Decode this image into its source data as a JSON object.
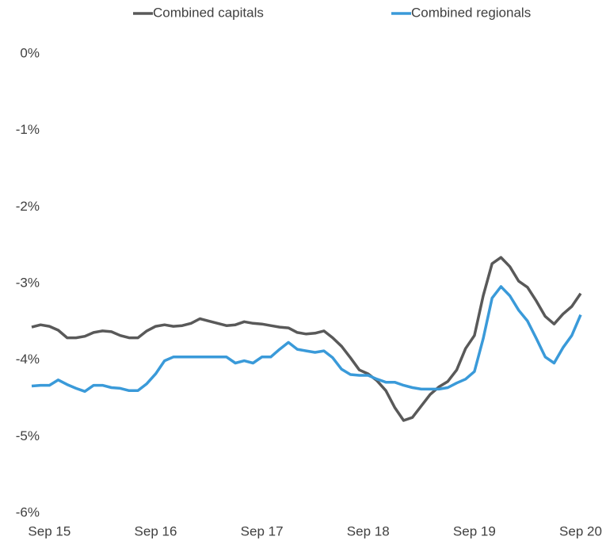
{
  "chart_data": {
    "type": "line",
    "categories": [
      null,
      null,
      "Sep 15",
      null,
      null,
      null,
      null,
      null,
      null,
      null,
      null,
      null,
      null,
      null,
      "Sep 16",
      null,
      null,
      null,
      null,
      null,
      null,
      null,
      null,
      null,
      null,
      null,
      "Sep 17",
      null,
      null,
      null,
      null,
      null,
      null,
      null,
      null,
      null,
      null,
      null,
      "Sep 18",
      null,
      null,
      null,
      null,
      null,
      null,
      null,
      null,
      null,
      null,
      null,
      "Sep 19",
      null,
      null,
      null,
      null,
      null,
      null,
      null,
      null,
      null,
      null,
      null,
      "Sep 20"
    ],
    "series": [
      {
        "name": "Combined capitals",
        "color": "#595959",
        "values": [
          -3.57,
          -3.54,
          -3.56,
          -3.61,
          -3.71,
          -3.71,
          -3.69,
          -3.64,
          -3.62,
          -3.63,
          -3.68,
          -3.71,
          -3.71,
          -3.62,
          -3.56,
          -3.54,
          -3.56,
          -3.55,
          -3.52,
          -3.46,
          -3.49,
          -3.52,
          -3.55,
          -3.54,
          -3.5,
          -3.52,
          -3.53,
          -3.55,
          -3.57,
          -3.58,
          -3.64,
          -3.66,
          -3.65,
          -3.62,
          -3.71,
          -3.82,
          -3.97,
          -4.13,
          -4.18,
          -4.27,
          -4.4,
          -4.62,
          -4.79,
          -4.75,
          -4.6,
          -4.45,
          -4.35,
          -4.28,
          -4.13,
          -3.85,
          -3.68,
          -3.16,
          -2.74,
          -2.66,
          -2.78,
          -2.97,
          -3.05,
          -3.23,
          -3.43,
          -3.53,
          -3.4,
          -3.3,
          -3.13
        ]
      },
      {
        "name": "Combined regionals",
        "color": "#3a9ad9",
        "values": [
          -4.34,
          -4.33,
          -4.33,
          -4.26,
          -4.32,
          -4.37,
          -4.41,
          -4.33,
          -4.33,
          -4.36,
          -4.37,
          -4.4,
          -4.4,
          -4.31,
          -4.18,
          -4.01,
          -3.96,
          -3.96,
          -3.96,
          -3.96,
          -3.96,
          -3.96,
          -3.96,
          -4.04,
          -4.01,
          -4.04,
          -3.96,
          -3.96,
          -3.86,
          -3.77,
          -3.86,
          -3.88,
          -3.9,
          -3.88,
          -3.97,
          -4.12,
          -4.19,
          -4.2,
          -4.2,
          -4.25,
          -4.29,
          -4.29,
          -4.33,
          -4.36,
          -4.38,
          -4.38,
          -4.38,
          -4.36,
          -4.3,
          -4.25,
          -4.15,
          -3.72,
          -3.19,
          -3.04,
          -3.16,
          -3.35,
          -3.49,
          -3.72,
          -3.96,
          -4.04,
          -3.84,
          -3.68,
          -3.41
        ]
      }
    ],
    "ylim": [
      -6,
      0
    ],
    "yticks": [
      {
        "value": 0,
        "label": "0%"
      },
      {
        "value": -1,
        "label": "-1%"
      },
      {
        "value": -2,
        "label": "-2%"
      },
      {
        "value": -3,
        "label": "-3%"
      },
      {
        "value": -4,
        "label": "-4%"
      },
      {
        "value": -5,
        "label": "-5%"
      },
      {
        "value": -6,
        "label": "-6%"
      }
    ],
    "grid": false,
    "legend": "top"
  }
}
